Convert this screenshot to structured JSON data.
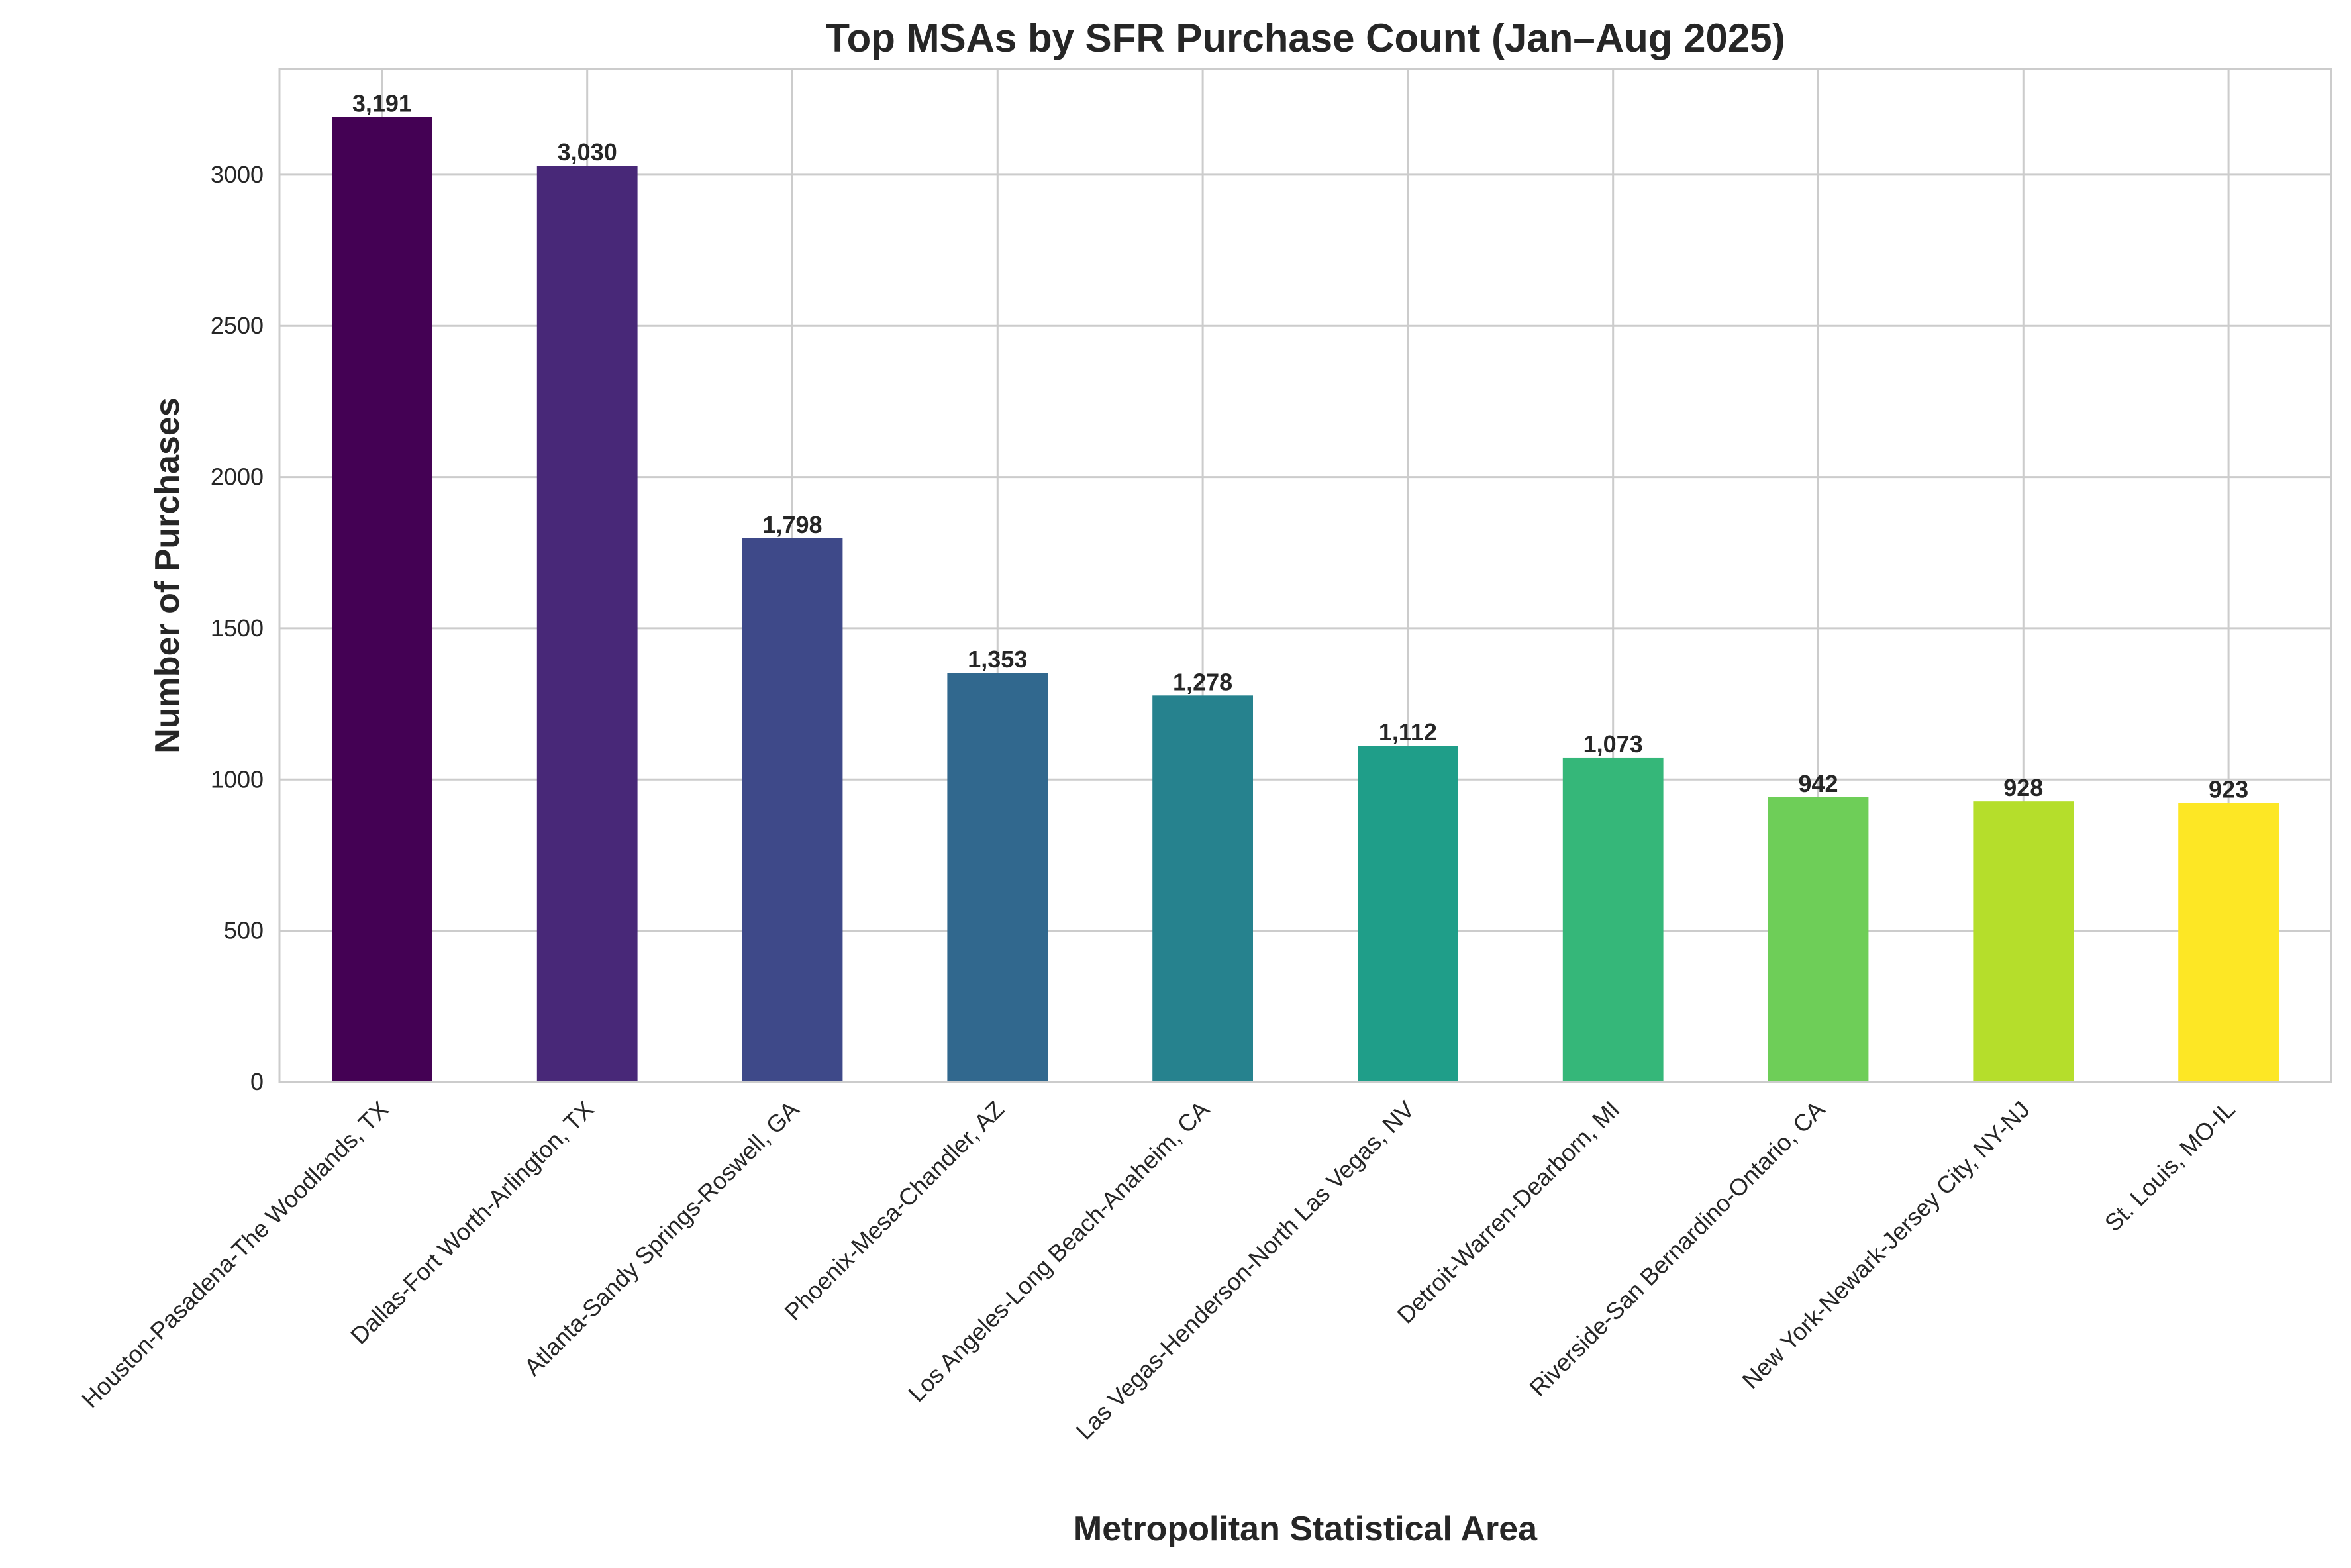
{
  "chart_data": {
    "type": "bar",
    "title": "Top MSAs by SFR Purchase Count (Jan–Aug 2025)",
    "xlabel": "Metropolitan Statistical Area",
    "ylabel": "Number of Purchases",
    "ylim": [
      0,
      3350
    ],
    "yticks": [
      0,
      500,
      1000,
      1500,
      2000,
      2500,
      3000
    ],
    "grid": true,
    "categories": [
      "Houston-Pasadena-The Woodlands, TX",
      "Dallas-Fort Worth-Arlington, TX",
      "Atlanta-Sandy Springs-Roswell, GA",
      "Phoenix-Mesa-Chandler, AZ",
      "Los Angeles-Long Beach-Anaheim, CA",
      "Las Vegas-Henderson-North Las Vegas, NV",
      "Detroit-Warren-Dearborn, MI",
      "Riverside-San Bernardino-Ontario, CA",
      "New York-Newark-Jersey City, NY-NJ",
      "St. Louis, MO-IL"
    ],
    "values": [
      3191,
      3030,
      1798,
      1353,
      1278,
      1112,
      1073,
      942,
      928,
      923
    ],
    "data_labels": [
      "3,191",
      "3,030",
      "1,798",
      "1,353",
      "1,278",
      "1,112",
      "1,073",
      "942",
      "928",
      "923"
    ],
    "colors": [
      "#440154",
      "#482878",
      "#3e4989",
      "#31688e",
      "#26828e",
      "#1f9e89",
      "#35b779",
      "#6ece58",
      "#b5de2b",
      "#fde725"
    ]
  }
}
